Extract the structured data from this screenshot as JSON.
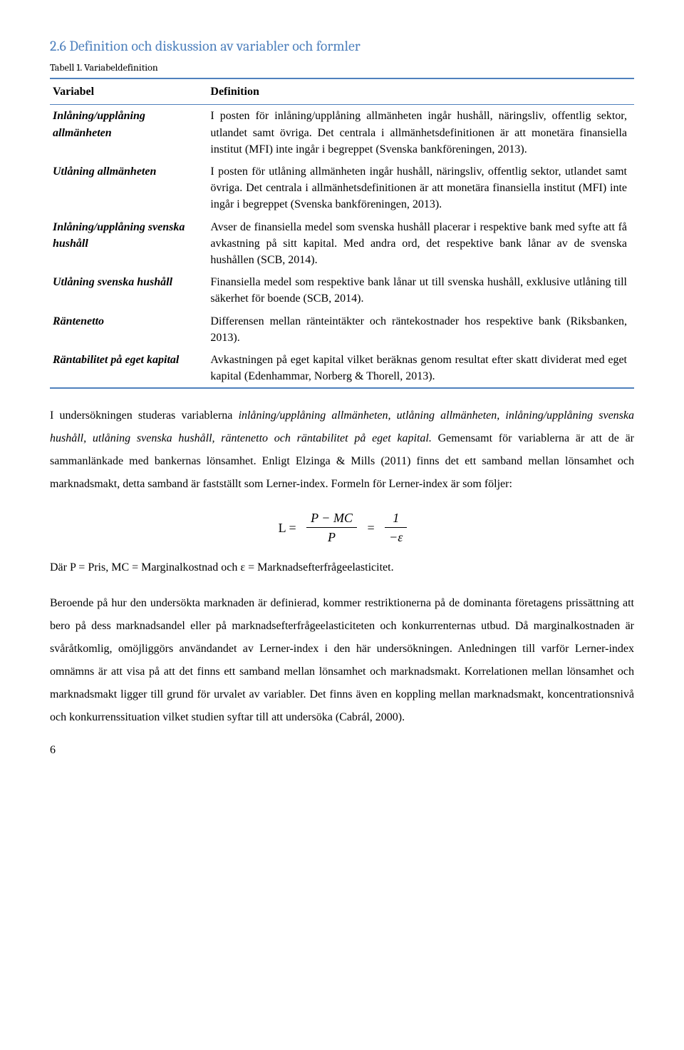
{
  "heading": "2.6 Definition och diskussion av variabler och formler",
  "table_caption": "Tabell 1. Variabeldefinition",
  "table": {
    "col_widths": [
      "27%",
      "73%"
    ],
    "header": {
      "col1": "Variabel",
      "col2": "Definition"
    },
    "rows": [
      {
        "variable": "Inlåning/upplåning allmänheten",
        "definition": "I posten för inlåning/upplåning allmänheten ingår hushåll, näringsliv, offentlig sektor, utlandet samt övriga. Det centrala i allmänhetsdefinitionen är att monetära finansiella institut (MFI) inte ingår i begreppet (Svenska bankföreningen, 2013)."
      },
      {
        "variable": "Utlåning allmänheten",
        "definition": "I posten för utlåning allmänheten ingår hushåll, näringsliv, offentlig sektor, utlandet samt övriga. Det centrala i allmänhetsdefinitionen är att monetära finansiella institut (MFI) inte ingår i begreppet (Svenska bankföreningen, 2013)."
      },
      {
        "variable": "Inlåning/upplåning svenska hushåll",
        "definition": "Avser de finansiella medel som svenska hushåll placerar i respektive bank med syfte att få avkastning på sitt kapital. Med andra ord, det respektive bank lånar av de svenska hushållen (SCB, 2014)."
      },
      {
        "variable": "Utlåning svenska hushåll",
        "definition": "Finansiella medel som respektive bank lånar ut till svenska hushåll, exklusive utlåning till säkerhet för boende (SCB, 2014)."
      },
      {
        "variable": "Räntenetto",
        "definition": "Differensen mellan ränteintäkter och räntekostnader hos respektive bank (Riksbanken, 2013)."
      },
      {
        "variable": "Räntabilitet på eget kapital",
        "definition": "Avkastningen på eget kapital vilket beräknas genom resultat efter skatt dividerat med eget kapital (Edenhammar, Norberg & Thorell, 2013)."
      }
    ]
  },
  "para1": {
    "pre": "I undersökningen studeras variablerna ",
    "ital": "inlåning/upplåning allmänheten, utlåning allmänheten, inlåning/upplåning svenska hushåll, utlåning svenska hushåll, räntenetto och räntabilitet på eget kapital.",
    "post": " Gemensamt för variablerna är att de är sammanlänkade med bankernas lönsamhet. Enligt Elzinga & Mills (2011) finns det ett samband mellan lönsamhet och marknadsmakt, detta samband är fastställt som Lerner-index. Formeln för Lerner-index är som följer:"
  },
  "formula": {
    "lhs": "L =",
    "frac1_num": "P − MC",
    "frac1_den": "P",
    "mid_eq": "=",
    "frac2_num": "1",
    "frac2_den": "−ε"
  },
  "para2": "Där P = Pris, MC = Marginalkostnad och ε = Marknadsefterfrågeelasticitet.",
  "para3": "Beroende på hur den undersökta marknaden är definierad, kommer restriktionerna på de dominanta företagens prissättning att bero på dess marknadsandel eller på marknadsefterfrågeelasticiteten och konkurrenternas utbud. Då marginalkostnaden är svåråtkomlig, omöjliggörs användandet av Lerner-index i den här undersökningen. Anledningen till varför Lerner-index omnämns är att visa på att det finns ett samband mellan lönsamhet och marknadsmakt. Korrelationen mellan lönsamhet och marknadsmakt ligger till grund för urvalet av variabler. Det finns även en koppling mellan marknadsmakt, koncentrationsnivå och konkurrenssituation vilket studien syftar till att undersöka (Cabrál, 2000).",
  "page_number": "6",
  "colors": {
    "heading": "#4f81bd",
    "rule": "#4f81bd",
    "text": "#000000",
    "background": "#ffffff"
  }
}
